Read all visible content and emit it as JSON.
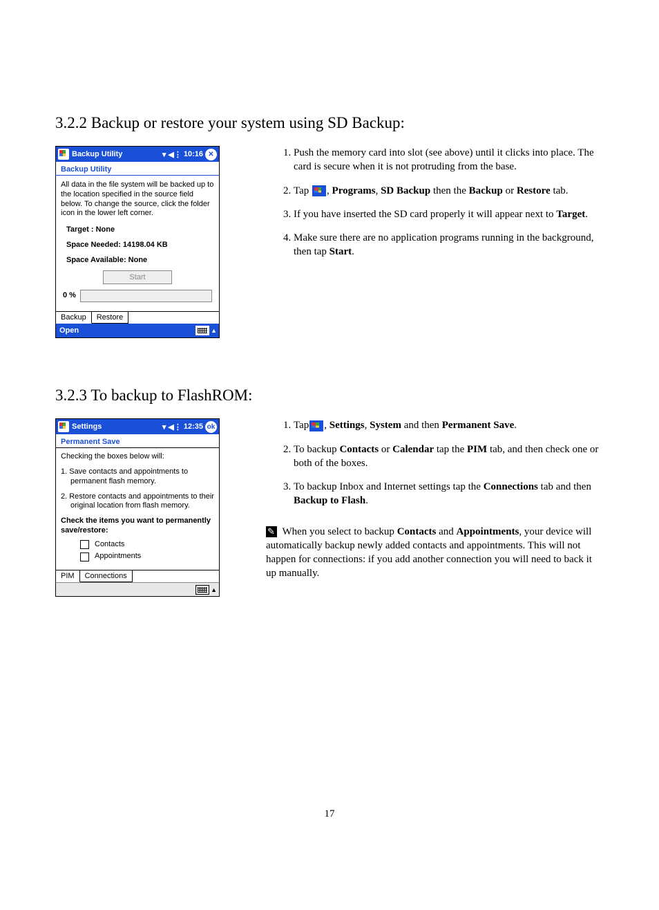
{
  "page_number": "17",
  "section1": {
    "heading": "3.2.2 Backup or restore your system using SD Backup:",
    "pda": {
      "titlebar_bg": "#1a4fd8",
      "title": "Backup Utility",
      "time": "10:16",
      "close_glyph": "✕",
      "subtitle": "Backup Utility",
      "description": "All data in the file system will be backed up to the location specified in the source field below. To change the source, click the folder icon in the lower left corner.",
      "target": "Target : None",
      "space_needed": "Space Needed: 14198.04 KB",
      "space_available": "Space Available: None",
      "start_btn": "Start",
      "progress_label": "0 %",
      "tabs": [
        "Backup",
        "Restore"
      ],
      "menubar_open": "Open"
    },
    "steps": [
      "Push the memory card into slot (see above) until it clicks into place. The card is secure when it is not protruding from the base.",
      "Tap {ICON}, <b>Programs</b>, <b>SD Backup</b> then the <b>Backup</b> or <b>Restore</b> tab.",
      "If you have inserted the SD card properly it will appear next to <b>Target</b>.",
      "Make sure there are no application programs running in the background, then tap <b>Start</b>."
    ]
  },
  "section2": {
    "heading": "3.2.3 To backup to FlashROM:",
    "pda": {
      "titlebar_bg": "#1a4fd8",
      "title": "Settings",
      "time": "12:35",
      "ok_glyph": "ok",
      "subtitle": "Permanent Save",
      "subtitle_border_color": "#000000",
      "intro": "Checking the boxes below will:",
      "item1": "1. Save contacts and appointments to permanent flash memory.",
      "item2": "2. Restore contacts and appointments to their original location from flash memory.",
      "check_heading": "Check the items you want to permanently save/restore:",
      "check1": "Contacts",
      "check2": "Appointments",
      "tabs": [
        "PIM",
        "Connections"
      ]
    },
    "steps": [
      "Tap{ICON}, <b>Settings</b>, <b>System</b> and then <b>Permanent Save</b>.",
      "To backup <b>Contacts</b> or <b>Calendar</b> tap the <b>PIM</b> tab, and then check one or both of the boxes.",
      "To backup Inbox and Internet settings tap the <b>Connections</b> tab and then <b>Backup to Flash</b>."
    ],
    "note": "When you select to backup <b>Contacts</b> and <b>Appointments</b>, your device will automatically backup newly added contacts and appointments. This will not happen for connections: if you add another connection you will need to back it up manually."
  }
}
